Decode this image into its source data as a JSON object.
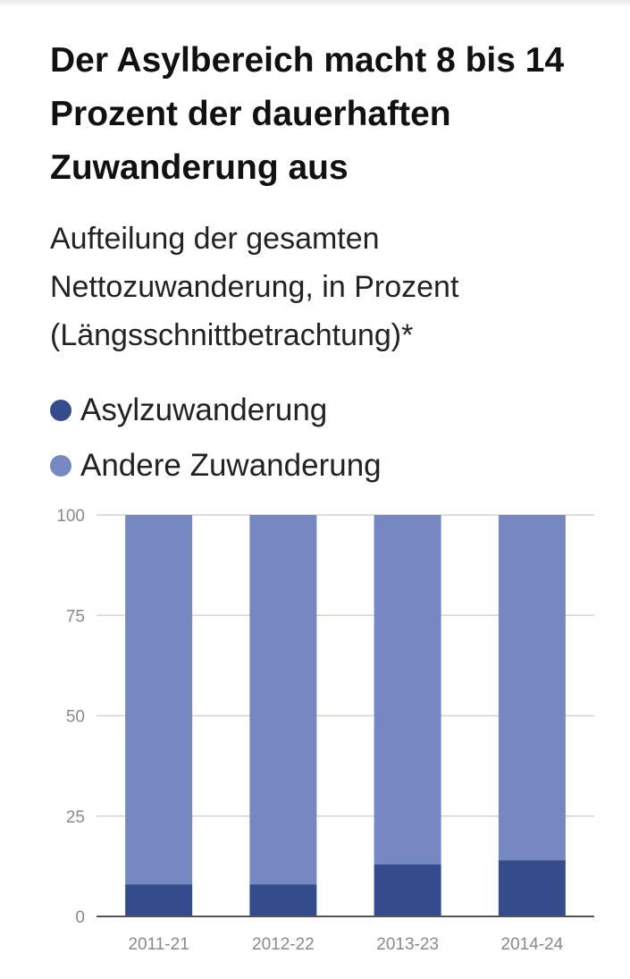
{
  "title": "Der Asylbereich macht 8 bis 14 Prozent der dauerhaften Zuwanderung aus",
  "subtitle": "Aufteilung der gesamten Nettozuwanderung, in Prozent (Längsschnittbetrachtung)*",
  "legend": [
    {
      "label": "Asylzuwanderung",
      "color": "#354c8c"
    },
    {
      "label": "Andere Zuwanderung",
      "color": "#7589c0"
    }
  ],
  "chart_data": {
    "type": "bar",
    "stacked": true,
    "categories": [
      "2011-21",
      "2012-22",
      "2013-23",
      "2014-24"
    ],
    "series": [
      {
        "name": "Asylzuwanderung",
        "values": [
          8,
          8,
          13,
          14
        ],
        "color": "#354c8c"
      },
      {
        "name": "Andere Zuwanderung",
        "values": [
          92,
          92,
          87,
          86
        ],
        "color": "#7589c0"
      }
    ],
    "ylim": [
      0,
      100
    ],
    "yticks": [
      0,
      25,
      50,
      75,
      100
    ],
    "grid": true,
    "legend_position": "top-left"
  }
}
